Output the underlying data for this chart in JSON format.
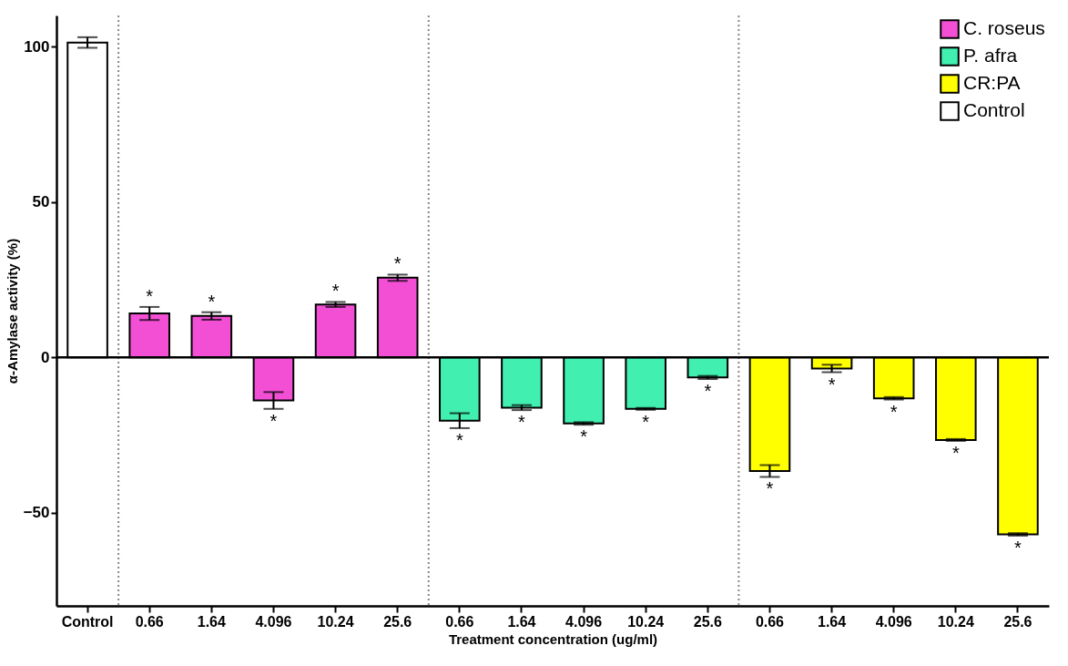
{
  "chart_data": {
    "type": "bar",
    "xlabel": "Treatment concentration (ug/ml)",
    "ylabel": "α-Amylase activity (%)",
    "categories": [
      "Control",
      "0.66",
      "1.64",
      "4.096",
      "10.24",
      "25.6",
      "0.66",
      "1.64",
      "4.096",
      "10.24",
      "25.6",
      "0.66",
      "1.64",
      "4.096",
      "10.24",
      "25.6"
    ],
    "series": [
      {
        "name": "C. roseus",
        "color": "#f24fd5",
        "values": [
          null,
          14.1,
          13.3,
          -13.9,
          17,
          25.6,
          null,
          null,
          null,
          null,
          null,
          null,
          null,
          null,
          null,
          null
        ],
        "errors": [
          null,
          2.1,
          1.2,
          2.7,
          0.8,
          1,
          null,
          null,
          null,
          null,
          null,
          null,
          null,
          null,
          null,
          null
        ],
        "value_labels": [
          null,
          "*",
          "*",
          "*",
          "*",
          "*",
          null,
          null,
          null,
          null,
          null,
          null,
          null,
          null,
          null,
          null
        ]
      },
      {
        "name": "P. afra",
        "color": "#41efb1",
        "values": [
          null,
          null,
          null,
          null,
          null,
          null,
          -20.4,
          -16.2,
          -21.3,
          -16.6,
          -6.5,
          null,
          null,
          null,
          null,
          null
        ],
        "errors": [
          null,
          null,
          null,
          null,
          null,
          null,
          2.4,
          0.8,
          0.4,
          0.3,
          0.5,
          null,
          null,
          null,
          null,
          null
        ],
        "value_labels": [
          null,
          null,
          null,
          null,
          null,
          null,
          "*",
          "*",
          "*",
          "*",
          "*",
          null,
          null,
          null,
          null,
          null
        ]
      },
      {
        "name": "CR:PA",
        "color": "#ffff00",
        "values": [
          null,
          null,
          null,
          null,
          null,
          null,
          null,
          null,
          null,
          null,
          null,
          -36.6,
          -3.6,
          -13.2,
          -26.6,
          -57
        ],
        "errors": [
          null,
          null,
          null,
          null,
          null,
          null,
          null,
          null,
          null,
          null,
          null,
          1.9,
          1.2,
          0.4,
          0.3,
          0.4
        ],
        "value_labels": [
          null,
          null,
          null,
          null,
          null,
          null,
          null,
          null,
          null,
          null,
          null,
          "*",
          "*",
          "*",
          "*",
          "*"
        ]
      },
      {
        "name": "Control",
        "color": "#ffffff",
        "values": [
          101.3,
          null,
          null,
          null,
          null,
          null,
          null,
          null,
          null,
          null,
          null,
          null,
          null,
          null,
          null,
          null
        ],
        "errors": [
          1.7,
          null,
          null,
          null,
          null,
          null,
          null,
          null,
          null,
          null,
          null,
          null,
          null,
          null,
          null,
          null
        ]
      }
    ],
    "ylim": [
      -80,
      110
    ],
    "yticks": [
      -50,
      0,
      50,
      100
    ],
    "ref_lines": [
      {
        "axis": "y",
        "value": 0,
        "color": "#000000"
      }
    ],
    "legend": "top right",
    "grid": false
  }
}
